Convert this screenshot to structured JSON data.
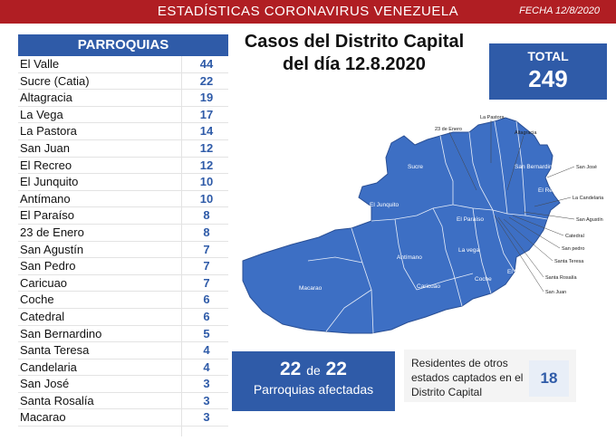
{
  "header": {
    "title": "ESTADÍSTICAS CORONAVIRUS VENEZUELA",
    "date": "FECHA 12/8/2020"
  },
  "table": {
    "heading": "PARROQUIAS",
    "rows": [
      {
        "name": "El Valle",
        "value": "44"
      },
      {
        "name": "Sucre (Catia)",
        "value": "22"
      },
      {
        "name": "Altagracia",
        "value": "19"
      },
      {
        "name": "La Vega",
        "value": "17"
      },
      {
        "name": "La Pastora",
        "value": "14"
      },
      {
        "name": "San Juan",
        "value": "12"
      },
      {
        "name": "El Recreo",
        "value": "12"
      },
      {
        "name": "El Junquito",
        "value": "10"
      },
      {
        "name": "Antímano",
        "value": "10"
      },
      {
        "name": "El Paraíso",
        "value": "8"
      },
      {
        "name": "23 de Enero",
        "value": "8"
      },
      {
        "name": "San Agustín",
        "value": "7"
      },
      {
        "name": "San Pedro",
        "value": "7"
      },
      {
        "name": "Caricuao",
        "value": "7"
      },
      {
        "name": "Coche",
        "value": "6"
      },
      {
        "name": "Catedral",
        "value": "6"
      },
      {
        "name": "San Bernardino",
        "value": "5"
      },
      {
        "name": "Santa Teresa",
        "value": "4"
      },
      {
        "name": "Candelaria",
        "value": "4"
      },
      {
        "name": "San José",
        "value": "3"
      },
      {
        "name": "Santa Rosalía",
        "value": "3"
      },
      {
        "name": "Macarao",
        "value": "3"
      }
    ]
  },
  "map_title": {
    "line1": "Casos del Distrito Capital",
    "line2": "del día 12.8.2020"
  },
  "total": {
    "label": "TOTAL",
    "value": "249"
  },
  "affected": {
    "count": "22",
    "of": "de",
    "total": "22",
    "label": "Parroquias afectadas"
  },
  "residents": {
    "line1": "Residentes de otros",
    "line2": "estados captados en el",
    "line3": "Distrito Capital",
    "value": "18"
  },
  "map_labels": {
    "la_pastora": "La Pastora",
    "enero": "23 de Enero",
    "altagracia": "Altagracia",
    "san_bernardino": "San Bernardino",
    "san_jose": "San José",
    "sucre": "Sucre",
    "el_recreo": "El Recreo",
    "la_candelaria": "La Candelaria",
    "el_junquito": "El Junquito",
    "el_paraiso": "El Paraíso",
    "san_agustin": "San Agustín",
    "catedral": "Catedral",
    "san_pedro": "San pedro",
    "la_vega": "La vega",
    "santa_teresa": "Santa Teresa",
    "antimano": "Antímano",
    "santa_rosalia": "Santa Rosalía",
    "macarao": "Macarao",
    "caricuao": "Caricuao",
    "el_valle": "El Valle",
    "coche": "Coche",
    "san_juan": "San Juan"
  },
  "colors": {
    "header_red": "#b01e23",
    "brand_blue": "#2f5ba8",
    "map_blue": "#3d6fc4"
  }
}
